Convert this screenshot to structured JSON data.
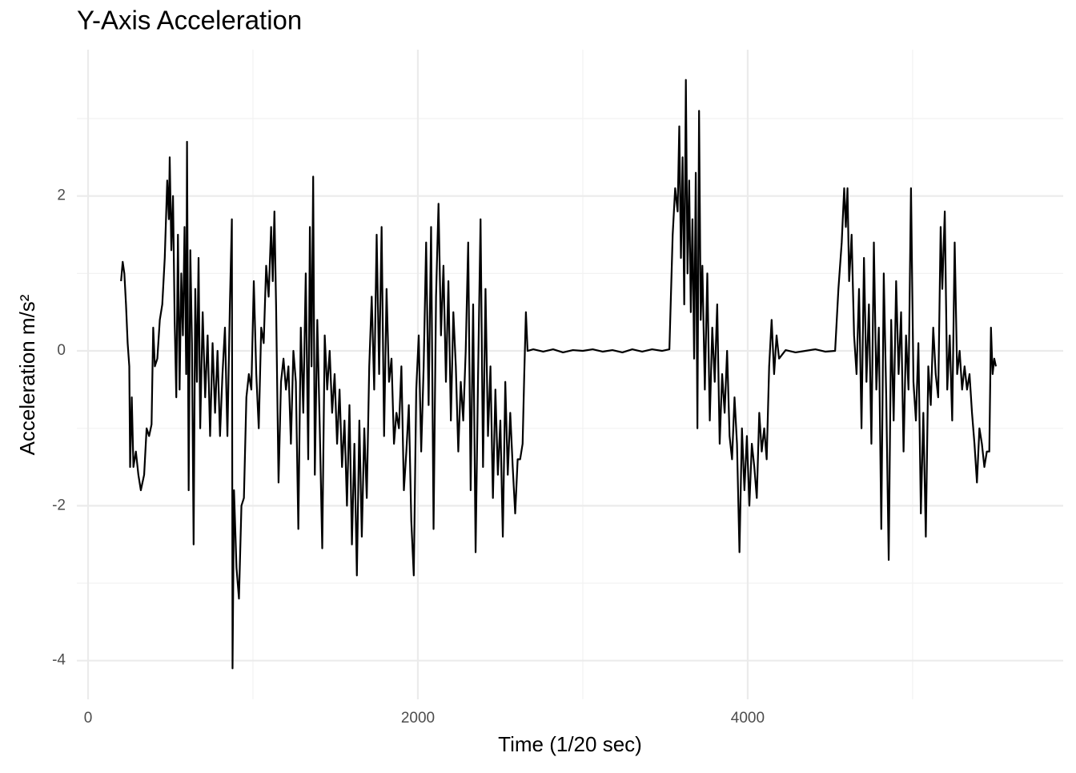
{
  "chart_data": {
    "type": "line",
    "title": "Y-Axis Acceleration",
    "x_label": "Time (1/20 sec)",
    "y_label": "Acceleration m/s²",
    "color": "#000000",
    "grid": true,
    "xlim": [
      -68,
      5913
    ],
    "xticks": [
      0,
      2000,
      4000
    ],
    "xminor_ticks": [
      1000,
      3000,
      5000
    ],
    "ylim": [
      -4.5,
      3.89
    ],
    "yticks": [
      -4,
      -2,
      0,
      2
    ],
    "yminor_ticks": [
      -3,
      -1,
      1,
      3
    ],
    "x": [
      200,
      210,
      220,
      230,
      240,
      250,
      255,
      265,
      275,
      290,
      305,
      320,
      340,
      355,
      370,
      385,
      395,
      405,
      420,
      435,
      450,
      465,
      480,
      490,
      495,
      505,
      515,
      525,
      535,
      545,
      555,
      565,
      575,
      585,
      595,
      600,
      610,
      620,
      630,
      640,
      650,
      660,
      670,
      680,
      695,
      710,
      725,
      740,
      755,
      770,
      785,
      800,
      815,
      830,
      845,
      860,
      872,
      876,
      885,
      900,
      915,
      930,
      945,
      960,
      975,
      990,
      1005,
      1020,
      1035,
      1050,
      1065,
      1080,
      1095,
      1110,
      1120,
      1130,
      1140,
      1155,
      1170,
      1185,
      1200,
      1215,
      1230,
      1245,
      1260,
      1275,
      1290,
      1305,
      1320,
      1335,
      1345,
      1355,
      1365,
      1375,
      1390,
      1405,
      1420,
      1435,
      1450,
      1465,
      1480,
      1495,
      1510,
      1525,
      1540,
      1555,
      1570,
      1585,
      1600,
      1615,
      1630,
      1645,
      1660,
      1675,
      1690,
      1705,
      1720,
      1735,
      1750,
      1765,
      1780,
      1795,
      1810,
      1825,
      1840,
      1855,
      1870,
      1885,
      1900,
      1915,
      1930,
      1945,
      1960,
      1975,
      1990,
      2005,
      2020,
      2035,
      2050,
      2065,
      2080,
      2095,
      2110,
      2125,
      2140,
      2155,
      2170,
      2185,
      2200,
      2215,
      2230,
      2245,
      2260,
      2275,
      2290,
      2305,
      2320,
      2335,
      2350,
      2365,
      2380,
      2395,
      2410,
      2425,
      2440,
      2455,
      2470,
      2485,
      2500,
      2515,
      2530,
      2545,
      2560,
      2575,
      2590,
      2605,
      2620,
      2635,
      2645,
      2655,
      2665,
      2700,
      2760,
      2820,
      2880,
      2940,
      3000,
      3060,
      3120,
      3180,
      3240,
      3300,
      3360,
      3420,
      3480,
      3525,
      3545,
      3560,
      3575,
      3585,
      3595,
      3605,
      3615,
      3625,
      3635,
      3645,
      3655,
      3665,
      3675,
      3685,
      3695,
      3705,
      3715,
      3725,
      3740,
      3755,
      3770,
      3785,
      3800,
      3815,
      3830,
      3845,
      3860,
      3875,
      3890,
      3905,
      3920,
      3935,
      3950,
      3965,
      3980,
      3995,
      4010,
      4025,
      4040,
      4055,
      4070,
      4085,
      4100,
      4115,
      4130,
      4145,
      4160,
      4175,
      4190,
      4230,
      4290,
      4350,
      4410,
      4470,
      4530,
      4550,
      4570,
      4585,
      4595,
      4605,
      4615,
      4630,
      4645,
      4660,
      4675,
      4690,
      4705,
      4720,
      4735,
      4750,
      4765,
      4780,
      4795,
      4810,
      4825,
      4840,
      4855,
      4870,
      4885,
      4900,
      4915,
      4930,
      4945,
      4960,
      4975,
      4990,
      5005,
      5020,
      5035,
      5050,
      5065,
      5080,
      5095,
      5110,
      5125,
      5140,
      5155,
      5170,
      5180,
      5195,
      5210,
      5225,
      5240,
      5255,
      5270,
      5285,
      5300,
      5315,
      5330,
      5345,
      5360,
      5375,
      5390,
      5405,
      5420,
      5435,
      5450,
      5465,
      5475,
      5485,
      5495,
      5505
    ],
    "values": [
      0.9,
      1.15,
      1.0,
      0.6,
      0.1,
      -0.2,
      -1.5,
      -0.6,
      -1.5,
      -1.3,
      -1.6,
      -1.8,
      -1.6,
      -1.0,
      -1.1,
      -0.95,
      0.3,
      -0.2,
      -0.1,
      0.4,
      0.6,
      1.2,
      2.2,
      1.7,
      2.5,
      1.3,
      2.0,
      0.4,
      -0.6,
      1.5,
      -0.5,
      1.0,
      0.2,
      1.6,
      -0.3,
      2.7,
      -1.8,
      1.3,
      0.1,
      -2.5,
      0.8,
      -0.4,
      1.2,
      -1.0,
      0.5,
      -0.6,
      0.2,
      -1.1,
      0.1,
      -0.8,
      0.0,
      -1.1,
      -0.3,
      0.3,
      -1.1,
      0.6,
      1.7,
      -4.1,
      -1.8,
      -2.8,
      -3.2,
      -2.0,
      -1.9,
      -0.6,
      -0.3,
      -0.5,
      0.9,
      -0.3,
      -1.0,
      0.3,
      0.1,
      1.1,
      0.7,
      1.6,
      0.9,
      1.8,
      0.6,
      -1.7,
      -0.4,
      -0.1,
      -0.5,
      -0.2,
      -1.2,
      0.0,
      -0.4,
      -2.3,
      0.3,
      -0.8,
      1.0,
      -1.4,
      1.6,
      -0.2,
      2.25,
      -1.6,
      0.4,
      -1.0,
      -2.55,
      0.2,
      -0.5,
      0.0,
      -0.8,
      -0.3,
      -1.2,
      -0.5,
      -1.5,
      -0.9,
      -2.0,
      -0.7,
      -2.5,
      -1.2,
      -2.9,
      -0.9,
      -2.4,
      -1.0,
      -1.9,
      -0.2,
      0.7,
      -0.5,
      1.5,
      -0.3,
      1.6,
      -1.1,
      0.8,
      -0.4,
      -0.1,
      -1.2,
      -0.8,
      -1.0,
      -0.2,
      -1.8,
      -1.3,
      -0.7,
      -2.2,
      -2.9,
      -0.5,
      0.2,
      -1.3,
      -0.2,
      1.4,
      -0.7,
      1.6,
      -2.3,
      0.7,
      1.9,
      0.2,
      1.1,
      -0.4,
      0.9,
      -0.9,
      0.5,
      -0.2,
      -1.3,
      -0.4,
      -0.9,
      0.0,
      1.4,
      -1.8,
      0.6,
      -2.6,
      -0.3,
      1.7,
      -1.5,
      0.8,
      -1.1,
      -0.2,
      -1.9,
      -0.5,
      -1.6,
      -0.9,
      -2.4,
      -0.4,
      -1.6,
      -0.8,
      -1.5,
      -2.1,
      -1.4,
      -1.4,
      -1.2,
      -0.3,
      0.5,
      0.0,
      0.02,
      -0.01,
      0.02,
      -0.02,
      0.01,
      0.0,
      0.02,
      -0.01,
      0.01,
      -0.02,
      0.02,
      -0.01,
      0.02,
      0.0,
      0.02,
      1.5,
      2.1,
      1.8,
      2.9,
      1.2,
      2.5,
      0.6,
      3.5,
      1.0,
      2.2,
      0.5,
      1.7,
      -0.1,
      2.3,
      -1.0,
      3.1,
      0.4,
      1.1,
      -0.5,
      1.0,
      -0.9,
      0.3,
      -0.4,
      0.6,
      -1.2,
      -0.3,
      -0.8,
      0.0,
      -1.1,
      -1.4,
      -0.6,
      -1.2,
      -2.6,
      -1.0,
      -1.8,
      -1.1,
      -2.0,
      -1.2,
      -1.5,
      -1.9,
      -0.8,
      -1.3,
      -1.0,
      -1.4,
      -0.2,
      0.4,
      -0.3,
      0.2,
      -0.1,
      0.01,
      -0.02,
      0.0,
      0.02,
      -0.01,
      0.0,
      0.8,
      1.4,
      2.1,
      1.6,
      2.1,
      0.9,
      1.5,
      0.2,
      -0.3,
      0.8,
      -1.0,
      1.2,
      -0.4,
      0.6,
      -1.2,
      1.4,
      -0.5,
      0.3,
      -2.3,
      1.0,
      -0.6,
      -2.7,
      0.4,
      -0.9,
      0.9,
      -0.3,
      0.5,
      -1.3,
      0.2,
      -0.5,
      2.1,
      -0.4,
      -0.9,
      0.1,
      -2.1,
      -0.8,
      -2.4,
      -0.2,
      -0.7,
      0.3,
      -0.3,
      -0.6,
      1.6,
      0.8,
      1.8,
      -0.5,
      0.2,
      -0.9,
      1.4,
      -0.3,
      0.0,
      -0.5,
      -0.2,
      -0.5,
      -0.3,
      -0.8,
      -1.2,
      -1.7,
      -1.0,
      -1.2,
      -1.5,
      -1.3,
      -1.3,
      0.3,
      -0.3,
      -0.1,
      -0.2
    ]
  }
}
